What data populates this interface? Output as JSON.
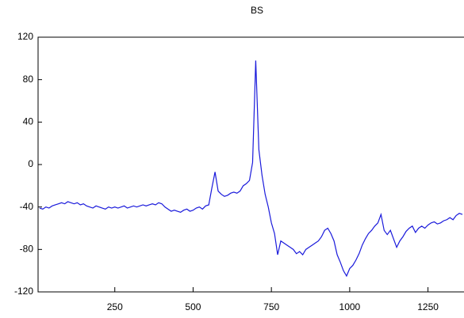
{
  "chart_data": {
    "type": "line",
    "title": "BS",
    "x": [
      10,
      20,
      30,
      40,
      50,
      60,
      70,
      80,
      90,
      100,
      110,
      120,
      130,
      140,
      150,
      160,
      170,
      180,
      190,
      200,
      210,
      220,
      230,
      240,
      250,
      260,
      270,
      280,
      290,
      300,
      310,
      320,
      330,
      340,
      350,
      360,
      370,
      380,
      390,
      400,
      410,
      420,
      430,
      440,
      450,
      460,
      470,
      480,
      490,
      500,
      510,
      520,
      530,
      540,
      550,
      560,
      570,
      580,
      590,
      600,
      610,
      620,
      630,
      640,
      650,
      660,
      670,
      680,
      690,
      700,
      710,
      720,
      730,
      740,
      750,
      760,
      770,
      780,
      790,
      800,
      810,
      820,
      830,
      840,
      850,
      860,
      870,
      880,
      890,
      900,
      910,
      920,
      930,
      940,
      950,
      960,
      970,
      980,
      990,
      1000,
      1010,
      1020,
      1030,
      1040,
      1050,
      1060,
      1070,
      1080,
      1090,
      1100,
      1110,
      1120,
      1130,
      1140,
      1150,
      1160,
      1170,
      1180,
      1190,
      1200,
      1210,
      1220,
      1230,
      1240,
      1250,
      1260,
      1270,
      1280,
      1290,
      1300,
      1310,
      1320,
      1330,
      1340,
      1350,
      1360
    ],
    "series": [
      {
        "color": "#1a1adb",
        "values": [
          -41,
          -42,
          -40,
          -41,
          -39,
          -38,
          -37,
          -36,
          -37,
          -35,
          -36,
          -37,
          -36,
          -38,
          -37,
          -39,
          -40,
          -41,
          -39,
          -40,
          -41,
          -42,
          -40,
          -41,
          -40,
          -41,
          -40,
          -39,
          -41,
          -40,
          -39,
          -40,
          -39,
          -38,
          -39,
          -38,
          -37,
          -38,
          -36,
          -37,
          -40,
          -42,
          -44,
          -43,
          -44,
          -45,
          -43,
          -42,
          -44,
          -43,
          -41,
          -40,
          -42,
          -39,
          -38,
          -22,
          -7,
          -25,
          -28,
          -30,
          -29,
          -27,
          -26,
          -27,
          -25,
          -20,
          -18,
          -15,
          2,
          98,
          14,
          -10,
          -28,
          -40,
          -55,
          -65,
          -85,
          -72,
          -74,
          -76,
          -78,
          -80,
          -84,
          -82,
          -85,
          -80,
          -78,
          -76,
          -74,
          -72,
          -68,
          -62,
          -60,
          -65,
          -72,
          -85,
          -92,
          -100,
          -105,
          -98,
          -95,
          -90,
          -84,
          -76,
          -70,
          -65,
          -62,
          -58,
          -55,
          -47,
          -62,
          -66,
          -62,
          -70,
          -78,
          -72,
          -68,
          -63,
          -60,
          -58,
          -64,
          -60,
          -58,
          -60,
          -57,
          -55,
          -54,
          -56,
          -55,
          -53,
          -52,
          -50,
          -52,
          -48,
          -46,
          -47
        ]
      }
    ],
    "xlim": [
      5,
      1365
    ],
    "xticks": [
      250,
      500,
      750,
      1000,
      1250
    ],
    "ylim": [
      -120,
      120
    ],
    "yticks": [
      120,
      80,
      40,
      0,
      -40,
      -80,
      -120
    ],
    "grid": false
  }
}
